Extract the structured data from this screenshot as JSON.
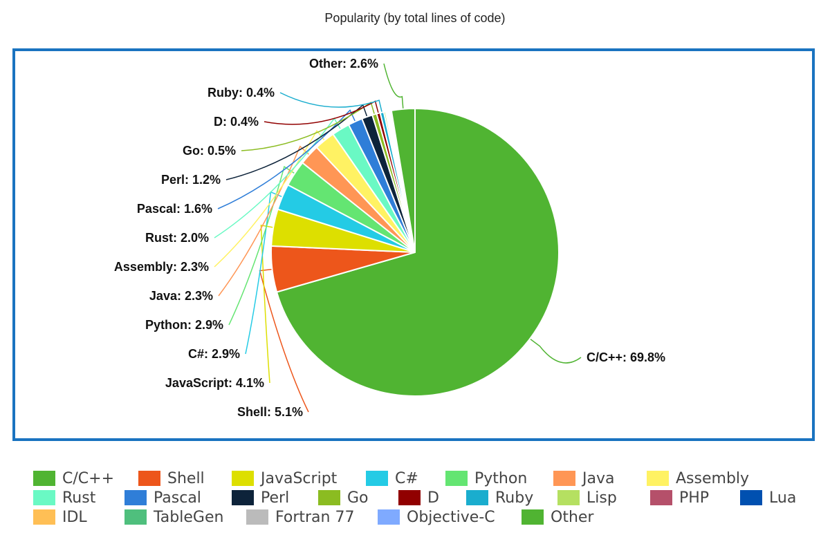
{
  "chart_data": {
    "type": "pie",
    "title": "Popularity (by total lines of code)",
    "slices": [
      {
        "name": "C/C++",
        "value": 69.8,
        "label": "C/C++: 69.8%",
        "color": "#50b432"
      },
      {
        "name": "Shell",
        "value": 5.1,
        "label": "Shell: 5.1%",
        "color": "#ed561b"
      },
      {
        "name": "JavaScript",
        "value": 4.1,
        "label": "JavaScript: 4.1%",
        "color": "#dddf00"
      },
      {
        "name": "C#",
        "value": 2.9,
        "label": "C#: 2.9%",
        "color": "#24cbe5"
      },
      {
        "name": "Python",
        "value": 2.9,
        "label": "Python: 2.9%",
        "color": "#64e572"
      },
      {
        "name": "Java",
        "value": 2.3,
        "label": "Java: 2.3%",
        "color": "#ff9655"
      },
      {
        "name": "Assembly",
        "value": 2.3,
        "label": "Assembly: 2.3%",
        "color": "#fff263"
      },
      {
        "name": "Rust",
        "value": 2.0,
        "label": "Rust: 2.0%",
        "color": "#6af9c4"
      },
      {
        "name": "Pascal",
        "value": 1.6,
        "label": "Pascal: 1.6%",
        "color": "#2f7ed8"
      },
      {
        "name": "Perl",
        "value": 1.2,
        "label": "Perl: 1.2%",
        "color": "#0d233a"
      },
      {
        "name": "Go",
        "value": 0.5,
        "label": "Go: 0.5%",
        "color": "#8bbc21"
      },
      {
        "name": "D",
        "value": 0.4,
        "label": "D: 0.4%",
        "color": "#910000"
      },
      {
        "name": "Ruby",
        "value": 0.4,
        "label": "Ruby: 0.4%",
        "color": "#1aadce"
      },
      {
        "name": "Lisp",
        "value": 0.2,
        "label": "",
        "color": "#b5e061"
      },
      {
        "name": "PHP",
        "value": 0.15,
        "label": "",
        "color": "#b5506a"
      },
      {
        "name": "Lua",
        "value": 0.1,
        "label": "",
        "color": "#0050b0"
      },
      {
        "name": "IDL",
        "value": 0.1,
        "label": "",
        "color": "#ffbf55"
      },
      {
        "name": "TableGen",
        "value": 0.1,
        "label": "",
        "color": "#4fbf7d"
      },
      {
        "name": "Fortran 77",
        "value": 0.1,
        "label": "",
        "color": "#bbbbbb"
      },
      {
        "name": "Objective-C",
        "value": 0.1,
        "label": "",
        "color": "#7faaff"
      },
      {
        "name": "Other",
        "value": 2.6,
        "label": "Other: 2.6%",
        "color": "#50b432"
      }
    ],
    "legend": {
      "placement": "bottom",
      "rows": [
        [
          "C/C++",
          "Shell",
          "JavaScript",
          "C#",
          "Python",
          "Java",
          "Assembly"
        ],
        [
          "Rust",
          "Pascal",
          "Perl",
          "Go",
          "D",
          "Ruby",
          "Lisp",
          "PHP",
          "Lua"
        ],
        [
          "IDL",
          "TableGen",
          "Fortran 77",
          "Objective-C",
          "Other"
        ]
      ]
    }
  }
}
